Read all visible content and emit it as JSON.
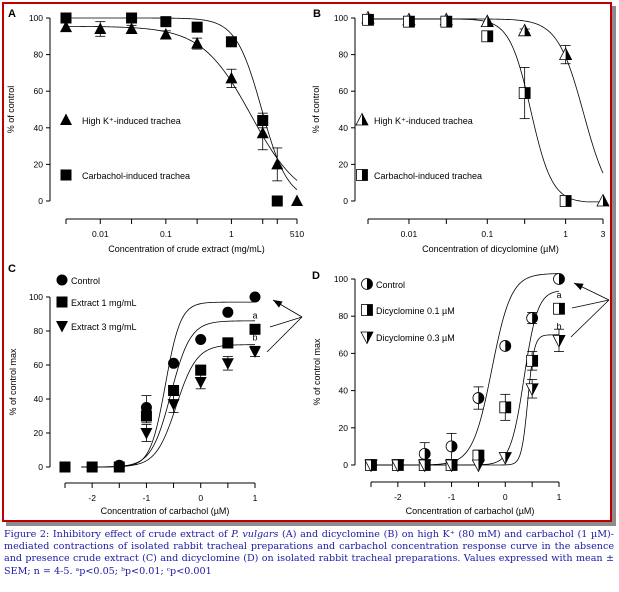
{
  "colors": {
    "frame": "#c00000",
    "caption": "#1a1aa6",
    "marker": "#000000"
  },
  "chart_data": [
    {
      "panel": "A",
      "type": "scatter",
      "xscale": "log",
      "xlabel": "Concentration of crude extract (mg/mL)",
      "ylabel": "% of control",
      "ylim": [
        0,
        100
      ],
      "yticks": [
        0,
        20,
        40,
        60,
        80,
        100
      ],
      "xticks": [
        {
          "v": 0.003,
          "label": ""
        },
        {
          "v": 0.01,
          "label": "0.01"
        },
        {
          "v": 0.03,
          "label": ""
        },
        {
          "v": 0.1,
          "label": "0.1"
        },
        {
          "v": 0.3,
          "label": ""
        },
        {
          "v": 1,
          "label": "1"
        },
        {
          "v": 3,
          "label": ""
        },
        {
          "v": 5,
          "label": ""
        },
        {
          "v": 10,
          "label": ""
        }
      ],
      "xtick_extra_label": "510",
      "xlim": [
        0.003,
        10
      ],
      "series": [
        {
          "name": "High K⁺-induced trachea",
          "marker": "triangle",
          "x": [
            0.003,
            0.01,
            0.03,
            0.1,
            0.3,
            1,
            3,
            5,
            10
          ],
          "y": [
            95,
            94,
            94,
            91,
            86,
            67,
            37,
            20,
            0
          ],
          "err": [
            0,
            4,
            2,
            2,
            3,
            5,
            9,
            9,
            0
          ],
          "fit": {
            "top": 95.5,
            "bottom": -2,
            "ec50": 2.0,
            "hill": 1.15
          }
        },
        {
          "name": "Carbachol-induced trachea",
          "marker": "square",
          "x": [
            0.003,
            0.03,
            0.1,
            0.3,
            1,
            3,
            5
          ],
          "y": [
            100,
            100,
            98,
            95,
            87,
            44,
            0
          ],
          "err": [
            0,
            0,
            0,
            1,
            0,
            4,
            0
          ],
          "fit": {
            "top": 100,
            "bottom": 0,
            "ec50": 2.9,
            "hill": 2.2
          }
        }
      ]
    },
    {
      "panel": "B",
      "type": "scatter",
      "xscale": "log",
      "xlabel": "Concentration of dicyclomine (µM)",
      "ylabel": "% of control",
      "ylim": [
        0,
        100
      ],
      "yticks": [
        0,
        20,
        40,
        60,
        80,
        100
      ],
      "xticks": [
        {
          "v": 0.003,
          "label": ""
        },
        {
          "v": 0.01,
          "label": "0.01"
        },
        {
          "v": 0.03,
          "label": ""
        },
        {
          "v": 0.1,
          "label": "0.1"
        },
        {
          "v": 0.3,
          "label": ""
        },
        {
          "v": 1,
          "label": "1"
        },
        {
          "v": 3,
          "label": "3"
        }
      ],
      "xlim": [
        0.003,
        3
      ],
      "series": [
        {
          "name": "High K⁺-induced trachea",
          "marker": "half-triangle",
          "x": [
            0.003,
            0.01,
            0.03,
            0.1,
            0.3,
            1,
            3
          ],
          "y": [
            100,
            99,
            99,
            98,
            93,
            80,
            0
          ],
          "err": [
            0,
            0,
            0,
            0,
            1,
            5,
            0
          ],
          "fit": {
            "top": 99.5,
            "bottom": -4,
            "ec50": 1.7,
            "hill": 2.6
          }
        },
        {
          "name": "Carbachol-induced trachea",
          "marker": "half-square",
          "x": [
            0.003,
            0.01,
            0.03,
            0.1,
            0.3,
            1
          ],
          "y": [
            99,
            98,
            98,
            90,
            59,
            0
          ],
          "err": [
            0,
            0,
            1,
            0,
            14,
            0
          ],
          "fit": {
            "top": 99.5,
            "bottom": -1,
            "ec50": 0.36,
            "hill": 3.2
          }
        }
      ]
    },
    {
      "panel": "C",
      "type": "scatter",
      "xscale": "linear",
      "xlabel": "Concentration of carbachol (µM)",
      "ylabel": "% of control max",
      "ylim": [
        0,
        100
      ],
      "yticks": [
        0,
        20,
        40,
        60,
        80,
        100
      ],
      "xticks": [
        {
          "v": -2.5,
          "label": ""
        },
        {
          "v": -2,
          "label": "-2"
        },
        {
          "v": -1.5,
          "label": ""
        },
        {
          "v": -1,
          "label": "-1"
        },
        {
          "v": -0.5,
          "label": ""
        },
        {
          "v": 0,
          "label": "0"
        },
        {
          "v": 0.5,
          "label": ""
        },
        {
          "v": 1,
          "label": "1"
        }
      ],
      "xlim": [
        -2.5,
        1
      ],
      "annotations": [
        {
          "text": "a",
          "series": "Extract 1 mg/mL"
        },
        {
          "text": "b",
          "series": "Extract 3 mg/mL"
        }
      ],
      "series": [
        {
          "name": "Control",
          "marker": "circle",
          "x": [
            -2.5,
            -2,
            -1.5,
            -1,
            -0.5,
            0,
            0.5,
            1
          ],
          "y": [
            0,
            0,
            1,
            35,
            61,
            75,
            91,
            100
          ],
          "err": [
            0,
            0,
            0,
            7,
            0,
            0,
            0,
            0
          ],
          "fit": {
            "top": 97,
            "bottom": 0,
            "logec50": -0.65,
            "hill": 1.35
          }
        },
        {
          "name": "Extract 1 mg/mL",
          "marker": "square",
          "x": [
            -2.5,
            -2,
            -1.5,
            -1,
            -0.5,
            0,
            0.5,
            1
          ],
          "y": [
            0,
            0,
            0,
            30,
            45,
            57,
            73,
            81
          ],
          "err": [
            0,
            0,
            0,
            4,
            3,
            2,
            3,
            2
          ],
          "fit": {
            "top": 86,
            "bottom": 0,
            "logec50": -0.55,
            "hill": 1.05
          }
        },
        {
          "name": "Extract 3 mg/mL",
          "marker": "triangle-down",
          "x": [
            -1,
            -0.5,
            0,
            0.5,
            1
          ],
          "y": [
            20,
            37,
            50,
            61,
            68
          ],
          "err": [
            5,
            5,
            4,
            4,
            3
          ],
          "fit": {
            "top": 72,
            "bottom": 0,
            "logec50": -0.45,
            "hill": 1.0
          }
        }
      ]
    },
    {
      "panel": "D",
      "type": "scatter",
      "xscale": "linear",
      "xlabel": "Concentration of carbachol (µM)",
      "ylabel": "% of control max",
      "ylim": [
        0,
        100
      ],
      "yticks": [
        0,
        20,
        40,
        60,
        80,
        100
      ],
      "xticks": [
        {
          "v": -2.5,
          "label": ""
        },
        {
          "v": -2,
          "label": "-2"
        },
        {
          "v": -1.5,
          "label": ""
        },
        {
          "v": -1,
          "label": "-1"
        },
        {
          "v": -0.5,
          "label": ""
        },
        {
          "v": 0,
          "label": "0"
        },
        {
          "v": 0.5,
          "label": ""
        },
        {
          "v": 1,
          "label": "1"
        }
      ],
      "xlim": [
        -2.5,
        1
      ],
      "annotations": [
        {
          "text": "a",
          "series": "Dicyclomine 0.1 µM"
        },
        {
          "text": "b",
          "series": "Dicyclomine 0.3 µM"
        }
      ],
      "series": [
        {
          "name": "Control",
          "marker": "half-circle",
          "x": [
            -2.5,
            -2,
            -1.5,
            -1,
            -0.5,
            0,
            0.5,
            1
          ],
          "y": [
            0,
            0,
            6,
            10,
            36,
            64,
            79,
            100
          ],
          "err": [
            0,
            0,
            6,
            7,
            6,
            0,
            3,
            0
          ],
          "fit": {
            "top": 103,
            "bottom": 0,
            "logec50": -0.25,
            "hill": 1.05
          }
        },
        {
          "name": "Dicyclomine 0.1 µM",
          "marker": "half-square",
          "x": [
            -2.5,
            -2,
            -1.5,
            -1,
            -0.5,
            0,
            0.5,
            1
          ],
          "y": [
            0,
            0,
            0,
            0,
            5,
            31,
            56,
            84
          ],
          "err": [
            0,
            0,
            0,
            0,
            3,
            7,
            5,
            0
          ],
          "fit": {
            "top": 94,
            "bottom": 0,
            "logec50": 0.35,
            "hill": 1.5
          }
        },
        {
          "name": "Dicyclomine 0.3 µM",
          "marker": "half-triangle-down",
          "x": [
            -2.5,
            -2,
            -1.5,
            -1,
            -0.5,
            0,
            0.5,
            1
          ],
          "y": [
            0,
            0,
            0,
            0,
            0,
            4,
            41,
            67
          ],
          "err": [
            0,
            0,
            0,
            0,
            0,
            0,
            5,
            6
          ],
          "fit": {
            "top": 70,
            "bottom": 0,
            "logec50": 0.42,
            "hill": 3.2
          }
        }
      ]
    }
  ],
  "panels": {
    "A": {
      "letter": "A"
    },
    "B": {
      "letter": "B"
    },
    "C": {
      "letter": "C"
    },
    "D": {
      "letter": "D"
    }
  },
  "caption": {
    "prefix": "Figure 2: Inhibitory effect of crude extract of ",
    "species": "P. vulgars",
    "rest": " (A) and dicyclomine (B) on high K⁺ (80 mM) and carbachol (1 µM)-mediated contractions of isolated rabbit tracheal preparations and carbachol concentration response curve in the absence and presence crude extract (C) and dicyclomine (D) on isolated rabbit tracheal preparations. Values expressed with mean ± SEM; n = 4-5. ᵃp<0.05; ᵇp<0.01; ᶜp<0.001"
  }
}
